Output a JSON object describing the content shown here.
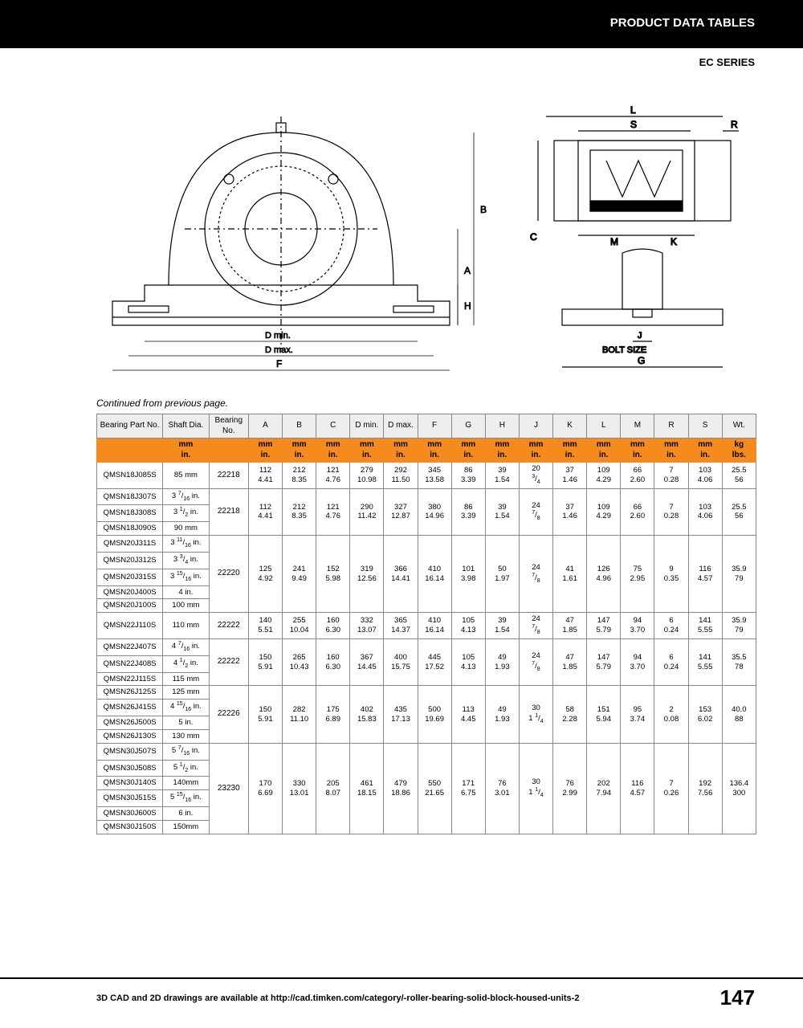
{
  "header": {
    "title": "PRODUCT DATA TABLES",
    "series": "EC SERIES"
  },
  "continued": "Continued from previous page.",
  "diagram": {
    "labels": [
      "A",
      "B",
      "C",
      "H",
      "D min.",
      "D max.",
      "F",
      "G",
      "J",
      "BOLT SIZE",
      "K",
      "L",
      "M",
      "R",
      "S"
    ]
  },
  "columns": [
    "Bearing Part No.",
    "Shaft Dia.",
    "Bearing No.",
    "A",
    "B",
    "C",
    "D min.",
    "D max.",
    "F",
    "G",
    "H",
    "J",
    "K",
    "L",
    "M",
    "R",
    "S",
    "Wt."
  ],
  "unitsRow": [
    "",
    "mm\nin.",
    "",
    "mm\nin.",
    "mm\nin.",
    "mm\nin.",
    "mm\nin.",
    "mm\nin.",
    "mm\nin.",
    "mm\nin.",
    "mm\nin.",
    "mm\nin.",
    "mm\nin.",
    "mm\nin.",
    "mm\nin.",
    "mm\nin.",
    "mm\nin.",
    "kg\nlbs."
  ],
  "groups": [
    {
      "parts": [
        [
          "QMSN18J085S",
          "85 mm"
        ]
      ],
      "bearing": "22218",
      "dims": [
        [
          "112",
          "4.41"
        ],
        [
          "212",
          "8.35"
        ],
        [
          "121",
          "4.76"
        ],
        [
          "279",
          "10.98"
        ],
        [
          "292",
          "11.50"
        ],
        [
          "345",
          "13.58"
        ],
        [
          "86",
          "3.39"
        ],
        [
          "39",
          "1.54"
        ],
        [
          "20",
          "3/4"
        ],
        [
          "37",
          "1.46"
        ],
        [
          "109",
          "4.29"
        ],
        [
          "66",
          "2.60"
        ],
        [
          "7",
          "0.28"
        ],
        [
          "103",
          "4.06"
        ],
        [
          "25.5",
          "56"
        ]
      ]
    },
    {
      "parts": [
        [
          "QMSN18J307S",
          "3 7/16 in."
        ],
        [
          "QMSN18J308S",
          "3 1/2 in."
        ],
        [
          "QMSN18J090S",
          "90 mm"
        ]
      ],
      "bearing": "22218",
      "dims": [
        [
          "112",
          "4.41"
        ],
        [
          "212",
          "8.35"
        ],
        [
          "121",
          "4.76"
        ],
        [
          "290",
          "11.42"
        ],
        [
          "327",
          "12.87"
        ],
        [
          "380",
          "14.96"
        ],
        [
          "86",
          "3.39"
        ],
        [
          "39",
          "1.54"
        ],
        [
          "24",
          "7/8"
        ],
        [
          "37",
          "1.46"
        ],
        [
          "109",
          "4.29"
        ],
        [
          "66",
          "2.60"
        ],
        [
          "7",
          "0.28"
        ],
        [
          "103",
          "4.06"
        ],
        [
          "25.5",
          "56"
        ]
      ]
    },
    {
      "parts": [
        [
          "QMSN20J311S",
          "3 11/16 in."
        ],
        [
          "QMSN20J312S",
          "3 3/4 in."
        ],
        [
          "QMSN20J315S",
          "3 15/16 in."
        ],
        [
          "QMSN20J400S",
          "4 in."
        ],
        [
          "QMSN20J100S",
          "100 mm"
        ]
      ],
      "bearing": "22220",
      "dims": [
        [
          "125",
          "4.92"
        ],
        [
          "241",
          "9.49"
        ],
        [
          "152",
          "5.98"
        ],
        [
          "319",
          "12.56"
        ],
        [
          "366",
          "14.41"
        ],
        [
          "410",
          "16.14"
        ],
        [
          "101",
          "3.98"
        ],
        [
          "50",
          "1.97"
        ],
        [
          "24",
          "7/8"
        ],
        [
          "41",
          "1.61"
        ],
        [
          "126",
          "4.96"
        ],
        [
          "75",
          "2.95"
        ],
        [
          "9",
          "0.35"
        ],
        [
          "116",
          "4.57"
        ],
        [
          "35.9",
          "79"
        ]
      ]
    },
    {
      "parts": [
        [
          "QMSN22J110S",
          "110 mm"
        ]
      ],
      "bearing": "22222",
      "dims": [
        [
          "140",
          "5.51"
        ],
        [
          "255",
          "10.04"
        ],
        [
          "160",
          "6.30"
        ],
        [
          "332",
          "13.07"
        ],
        [
          "365",
          "14.37"
        ],
        [
          "410",
          "16.14"
        ],
        [
          "105",
          "4.13"
        ],
        [
          "39",
          "1.54"
        ],
        [
          "24",
          "7/8"
        ],
        [
          "47",
          "1.85"
        ],
        [
          "147",
          "5.79"
        ],
        [
          "94",
          "3.70"
        ],
        [
          "6",
          "0.24"
        ],
        [
          "141",
          "5.55"
        ],
        [
          "35.9",
          "79"
        ]
      ]
    },
    {
      "parts": [
        [
          "QMSN22J407S",
          "4 7/16 in."
        ],
        [
          "QMSN22J408S",
          "4 1/2 in."
        ],
        [
          "QMSN22J115S",
          "115 mm"
        ]
      ],
      "bearing": "22222",
      "dims": [
        [
          "150",
          "5.91"
        ],
        [
          "265",
          "10.43"
        ],
        [
          "160",
          "6.30"
        ],
        [
          "367",
          "14.45"
        ],
        [
          "400",
          "15.75"
        ],
        [
          "445",
          "17.52"
        ],
        [
          "105",
          "4.13"
        ],
        [
          "49",
          "1.93"
        ],
        [
          "24",
          "7/8"
        ],
        [
          "47",
          "1.85"
        ],
        [
          "147",
          "5.79"
        ],
        [
          "94",
          "3.70"
        ],
        [
          "6",
          "0.24"
        ],
        [
          "141",
          "5.55"
        ],
        [
          "35.5",
          "78"
        ]
      ]
    },
    {
      "parts": [
        [
          "QMSN26J125S",
          "125 mm"
        ],
        [
          "QMSN26J415S",
          "4 15/16 in."
        ],
        [
          "QMSN26J500S",
          "5 in."
        ],
        [
          "QMSN26J130S",
          "130 mm"
        ]
      ],
      "bearing": "22226",
      "dims": [
        [
          "150",
          "5.91"
        ],
        [
          "282",
          "11.10"
        ],
        [
          "175",
          "6.89"
        ],
        [
          "402",
          "15.83"
        ],
        [
          "435",
          "17.13"
        ],
        [
          "500",
          "19.69"
        ],
        [
          "113",
          "4.45"
        ],
        [
          "49",
          "1.93"
        ],
        [
          "30",
          "1 1/4"
        ],
        [
          "58",
          "2.28"
        ],
        [
          "151",
          "5.94"
        ],
        [
          "95",
          "3.74"
        ],
        [
          "2",
          "0.08"
        ],
        [
          "153",
          "6.02"
        ],
        [
          "40.0",
          "88"
        ]
      ]
    },
    {
      "parts": [
        [
          "QMSN30J507S",
          "5 7/16 in."
        ],
        [
          "QMSN30J508S",
          "5 1/2 in."
        ],
        [
          "QMSN30J140S",
          "140mm"
        ],
        [
          "QMSN30J515S",
          "5 15/16 in."
        ],
        [
          "QMSN30J600S",
          "6 in."
        ],
        [
          "QMSN30J150S",
          "150mm"
        ]
      ],
      "bearing": "23230",
      "dims": [
        [
          "170",
          "6.69"
        ],
        [
          "330",
          "13.01"
        ],
        [
          "205",
          "8.07"
        ],
        [
          "461",
          "18.15"
        ],
        [
          "479",
          "18.86"
        ],
        [
          "550",
          "21.65"
        ],
        [
          "171",
          "6.75"
        ],
        [
          "76",
          "3.01"
        ],
        [
          "30",
          "1 1/4"
        ],
        [
          "76",
          "2.99"
        ],
        [
          "202",
          "7.94"
        ],
        [
          "116",
          "4.57"
        ],
        [
          "7",
          "0.26"
        ],
        [
          "192",
          "7.56"
        ],
        [
          "136.4",
          "300"
        ]
      ]
    }
  ],
  "footer": {
    "text": "3D CAD and 2D drawings are available at http://cad.timken.com/category/-roller-bearing-solid-block-housed-units-2",
    "page": "147"
  }
}
